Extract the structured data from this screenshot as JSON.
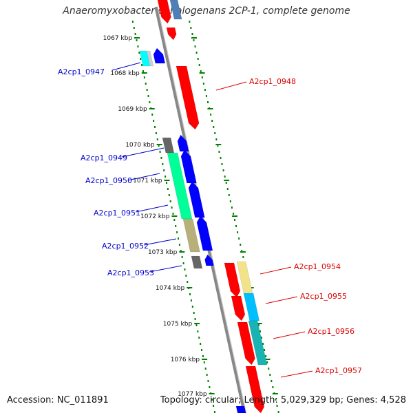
{
  "title": "Anaeromyxobacter dehalogenans 2CP-1, complete genome",
  "footer": {
    "accession": "Accession: NC_011891",
    "summary": "Topology: circular; Length: 5,029,329 bp; Genes: 4,528"
  },
  "colors": {
    "backbone": "#888888",
    "tick": "#008000",
    "forward_label": "#0000cc",
    "reverse_label": "#dd0000"
  },
  "ticks": [
    {
      "label": "1067 kbp"
    },
    {
      "label": "1068 kbp"
    },
    {
      "label": "1069 kbp"
    },
    {
      "label": "1070 kbp"
    },
    {
      "label": "1071 kbp"
    },
    {
      "label": "1072 kbp"
    },
    {
      "label": "1073 kbp"
    },
    {
      "label": "1074 kbp"
    },
    {
      "label": "1075 kbp"
    },
    {
      "label": "1076 kbp"
    },
    {
      "label": "1077 kbp"
    }
  ],
  "gene_labels": [
    {
      "text": "A2cp1_0947",
      "strand": "forward"
    },
    {
      "text": "A2cp1_0948",
      "strand": "reverse"
    },
    {
      "text": "A2cp1_0949",
      "strand": "forward"
    },
    {
      "text": "A2cp1_0950",
      "strand": "forward"
    },
    {
      "text": "A2cp1_0951",
      "strand": "forward"
    },
    {
      "text": "A2cp1_0952",
      "strand": "forward"
    },
    {
      "text": "A2cp1_0953",
      "strand": "forward"
    },
    {
      "text": "A2cp1_0954",
      "strand": "reverse"
    },
    {
      "text": "A2cp1_0955",
      "strand": "reverse"
    },
    {
      "text": "A2cp1_0956",
      "strand": "reverse"
    },
    {
      "text": "A2cp1_0957",
      "strand": "reverse"
    }
  ]
}
